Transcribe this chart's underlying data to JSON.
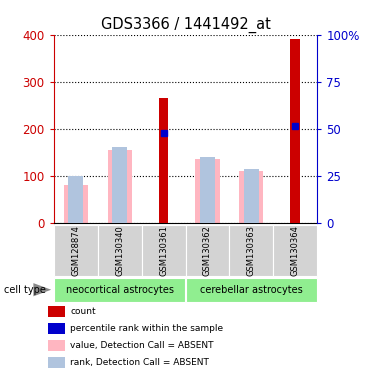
{
  "title": "GDS3366 / 1441492_at",
  "samples": [
    "GSM128874",
    "GSM130340",
    "GSM130361",
    "GSM130362",
    "GSM130363",
    "GSM130364"
  ],
  "cell_types": [
    {
      "label": "neocortical astrocytes",
      "span": [
        0,
        3
      ],
      "color": "#90EE90"
    },
    {
      "label": "cerebellar astrocytes",
      "span": [
        3,
        6
      ],
      "color": "#90EE90"
    }
  ],
  "count_values": [
    null,
    null,
    265,
    null,
    null,
    390
  ],
  "percentile_values": [
    null,
    null,
    47.5,
    null,
    null,
    51.25
  ],
  "value_absent": [
    80,
    155,
    null,
    135,
    110,
    null
  ],
  "rank_absent": [
    100,
    162,
    null,
    140,
    115,
    null
  ],
  "ylim_left": [
    0,
    400
  ],
  "ylim_right": [
    0,
    100
  ],
  "yticks_left": [
    0,
    100,
    200,
    300,
    400
  ],
  "yticks_right": [
    0,
    25,
    50,
    75,
    100
  ],
  "yticklabels_right": [
    "0",
    "25",
    "50",
    "75",
    "100%"
  ],
  "left_axis_color": "#cc0000",
  "right_axis_color": "#0000cc",
  "count_color": "#cc0000",
  "percentile_color": "#0000cc",
  "value_absent_color": "#ffb6c1",
  "rank_absent_color": "#b0c4de",
  "plot_bg": "#ffffff",
  "sample_box_color": "#d3d3d3"
}
